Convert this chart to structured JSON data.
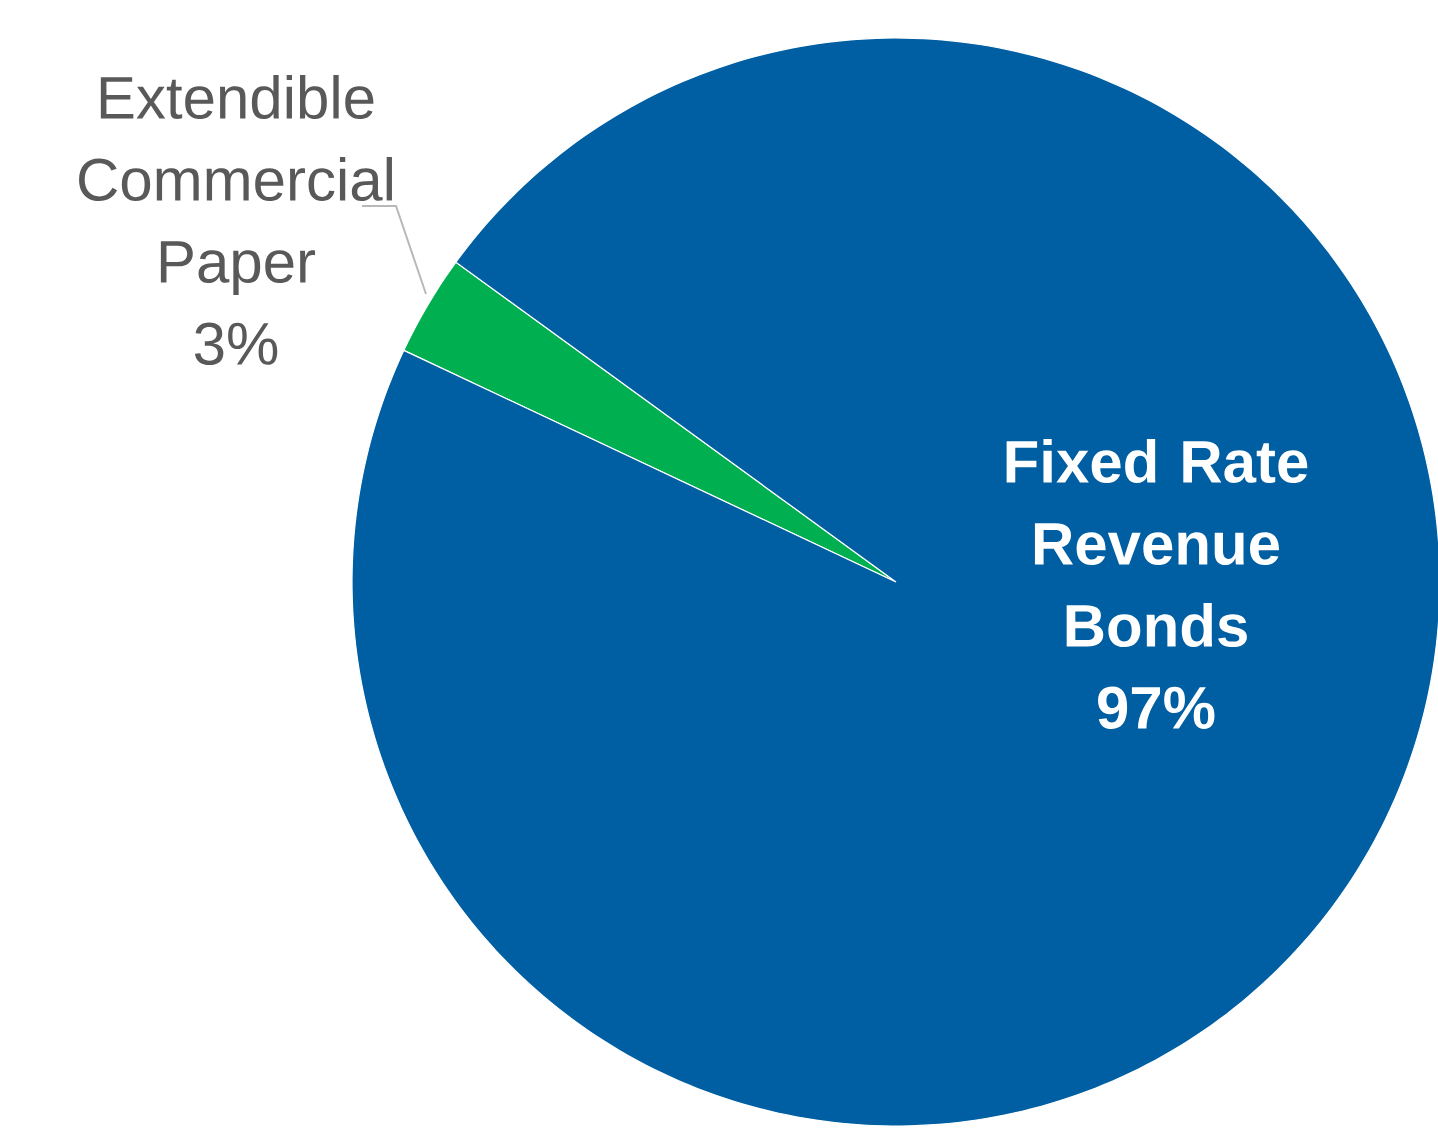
{
  "chart_data": {
    "type": "pie",
    "categories": [
      "Extendible Commercial Paper",
      "Fixed Rate Revenue Bonds"
    ],
    "values": [
      3,
      97
    ],
    "colors": [
      "#00b050",
      "#005ea2"
    ],
    "value_labels": [
      "3%",
      "97%"
    ]
  }
}
